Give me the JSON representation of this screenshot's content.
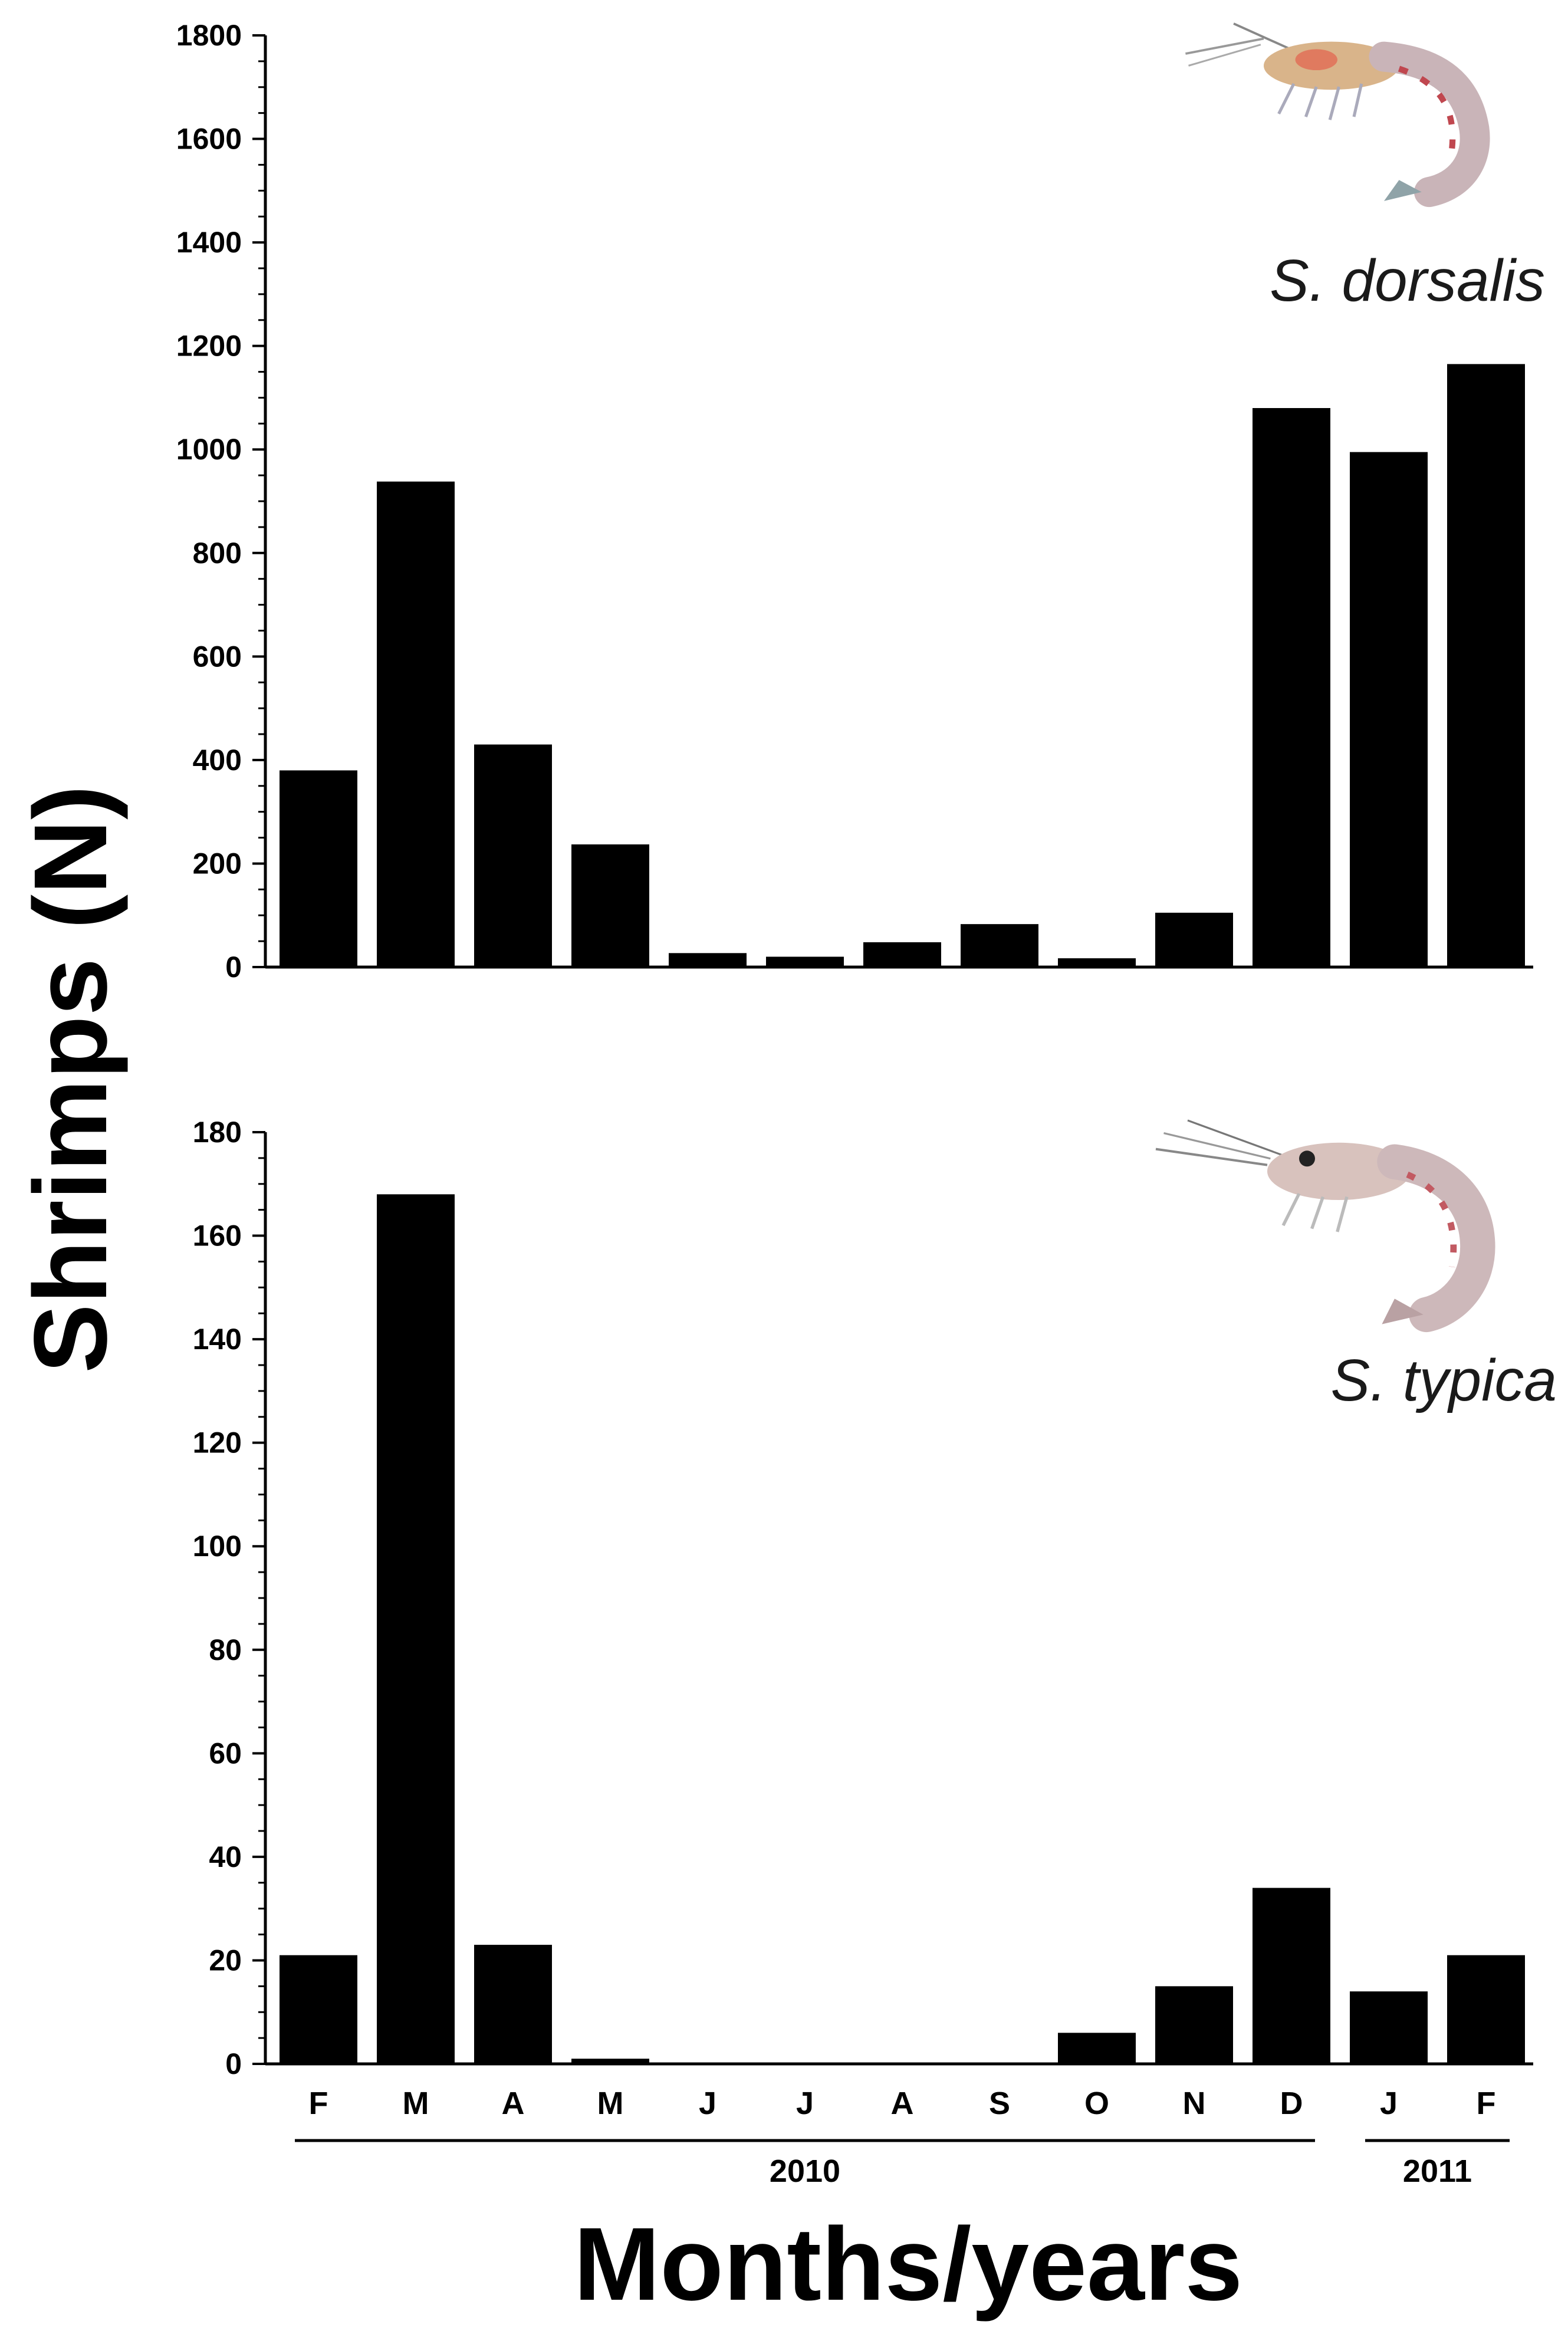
{
  "figure": {
    "ylabel": "Shrimps (N)",
    "xlabel": "Months/years",
    "categories": [
      "F",
      "M",
      "A",
      "M",
      "J",
      "J",
      "A",
      "S",
      "O",
      "N",
      "D",
      "J",
      "F"
    ],
    "years": [
      {
        "label": "2010",
        "from_index": 0,
        "to_index": 10
      },
      {
        "label": "2011",
        "from_index": 11,
        "to_index": 12
      }
    ]
  },
  "chart_data": [
    {
      "type": "bar",
      "title": "",
      "species_label": "S. dorsalis",
      "xlabel": "Months/years",
      "ylabel": "Shrimps (N)",
      "categories": [
        "F",
        "M",
        "A",
        "M",
        "J",
        "J",
        "A",
        "S",
        "O",
        "N",
        "D",
        "J",
        "F"
      ],
      "values": [
        380,
        938,
        430,
        237,
        27,
        20,
        48,
        83,
        17,
        105,
        1080,
        995,
        1165
      ],
      "ylim": [
        0,
        1800
      ],
      "yticks": [
        0,
        200,
        400,
        600,
        800,
        1000,
        1200,
        1400,
        1600,
        1800
      ],
      "grid": false,
      "bar_color": "#000000"
    },
    {
      "type": "bar",
      "title": "",
      "species_label": "S. typica",
      "xlabel": "Months/years",
      "ylabel": "Shrimps (N)",
      "categories": [
        "F",
        "M",
        "A",
        "M",
        "J",
        "J",
        "A",
        "S",
        "O",
        "N",
        "D",
        "J",
        "F"
      ],
      "values": [
        21,
        168,
        23,
        1,
        0,
        0,
        0,
        0,
        6,
        15,
        34,
        14,
        21
      ],
      "ylim": [
        0,
        180
      ],
      "yticks": [
        0,
        20,
        40,
        60,
        80,
        100,
        120,
        140,
        160,
        180
      ],
      "grid": false,
      "bar_color": "#000000"
    }
  ]
}
